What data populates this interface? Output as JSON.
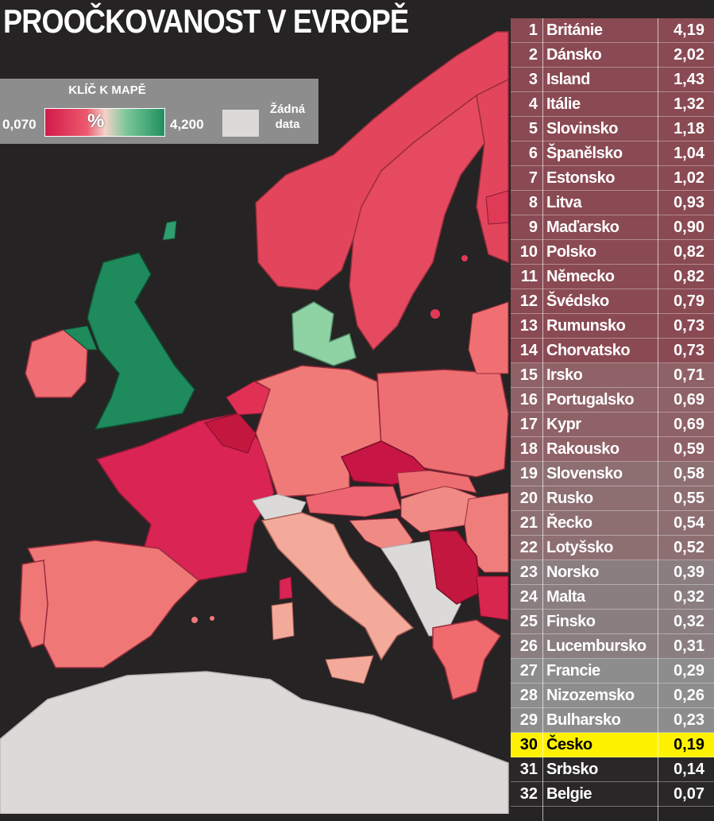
{
  "title": "PROOČKOVANOST V EVROPĚ",
  "legend": {
    "title": "KLÍČ K MAPĚ",
    "min": "0,070",
    "max": "4,200",
    "symbol": "%",
    "nodata_label_1": "Žádná",
    "nodata_label_2": "data",
    "colors": {
      "low": "#d21a4a",
      "mid": "#f4d2c8",
      "high": "#1f8f5f",
      "nodata": "#dcdad8"
    }
  },
  "chart_data": {
    "type": "table",
    "title": "PROOČKOVANOST V EVROPĚ",
    "unit": "%",
    "highlight_rank": 30,
    "rows": [
      {
        "rank": "1",
        "country": "Británie",
        "value": "4,19"
      },
      {
        "rank": "2",
        "country": "Dánsko",
        "value": "2,02"
      },
      {
        "rank": "3",
        "country": "Island",
        "value": "1,43"
      },
      {
        "rank": "4",
        "country": "Itálie",
        "value": "1,32"
      },
      {
        "rank": "5",
        "country": "Slovinsko",
        "value": "1,18"
      },
      {
        "rank": "6",
        "country": "Španělsko",
        "value": "1,04"
      },
      {
        "rank": "7",
        "country": "Estonsko",
        "value": "1,02"
      },
      {
        "rank": "8",
        "country": "Litva",
        "value": "0,93"
      },
      {
        "rank": "9",
        "country": "Maďarsko",
        "value": "0,90"
      },
      {
        "rank": "10",
        "country": "Polsko",
        "value": "0,82"
      },
      {
        "rank": "11",
        "country": "Německo",
        "value": "0,82"
      },
      {
        "rank": "12",
        "country": "Švédsko",
        "value": "0,79"
      },
      {
        "rank": "13",
        "country": "Rumunsko",
        "value": "0,73"
      },
      {
        "rank": "14",
        "country": "Chorvatsko",
        "value": "0,73"
      },
      {
        "rank": "15",
        "country": "Irsko",
        "value": "0,71"
      },
      {
        "rank": "16",
        "country": "Portugalsko",
        "value": "0,69"
      },
      {
        "rank": "17",
        "country": "Kypr",
        "value": "0,69"
      },
      {
        "rank": "18",
        "country": "Rakousko",
        "value": "0,59"
      },
      {
        "rank": "19",
        "country": "Slovensko",
        "value": "0,58"
      },
      {
        "rank": "20",
        "country": "Rusko",
        "value": "0,55"
      },
      {
        "rank": "21",
        "country": "Řecko",
        "value": "0,54"
      },
      {
        "rank": "22",
        "country": "Lotyšsko",
        "value": "0,52"
      },
      {
        "rank": "23",
        "country": "Norsko",
        "value": "0,39"
      },
      {
        "rank": "24",
        "country": "Malta",
        "value": "0,32"
      },
      {
        "rank": "25",
        "country": "Finsko",
        "value": "0,32"
      },
      {
        "rank": "26",
        "country": "Lucembursko",
        "value": "0,31"
      },
      {
        "rank": "27",
        "country": "Francie",
        "value": "0,29"
      },
      {
        "rank": "28",
        "country": "Nizozemsko",
        "value": "0,26"
      },
      {
        "rank": "29",
        "country": "Bulharsko",
        "value": "0,23"
      },
      {
        "rank": "30",
        "country": "Česko",
        "value": "0,19"
      },
      {
        "rank": "31",
        "country": "Srbsko",
        "value": "0,14"
      },
      {
        "rank": "32",
        "country": "Belgie",
        "value": "0,07"
      }
    ]
  }
}
